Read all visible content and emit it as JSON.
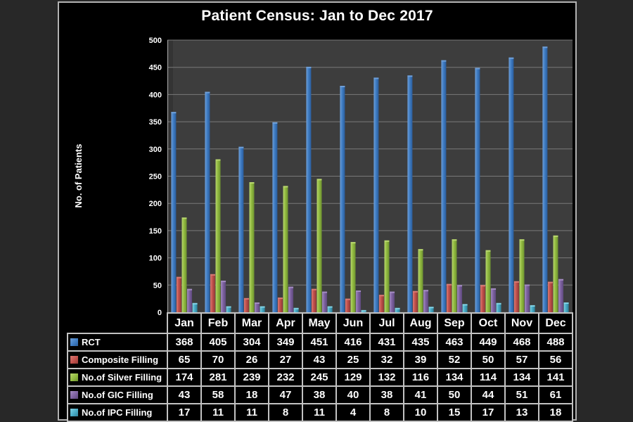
{
  "canvas": {
    "background": "#282828",
    "slide_background": "#000000",
    "slide_border": "#b2b2b2"
  },
  "chart_data": {
    "type": "bar",
    "title": "Patient Census: Jan to Dec 2017",
    "xlabel": "",
    "ylabel": "No. of Patients",
    "ylim": [
      0,
      500
    ],
    "ytick_step": 50,
    "grid": true,
    "legend_position": "table-left",
    "plot_background": "#3d3d3d",
    "gridline_color": "#7a7a7a",
    "axis_line_color": "#a0a0a0",
    "categories": [
      "Jan",
      "Feb",
      "Mar",
      "Apr",
      "May",
      "Jun",
      "Jul",
      "Aug",
      "Sep",
      "Oct",
      "Nov",
      "Dec"
    ],
    "series": [
      {
        "name": "RCT",
        "color": {
          "light": "#6f9fd8",
          "base": "#3f7dc4",
          "dark": "#2a5d9c"
        },
        "values": [
          368,
          405,
          304,
          349,
          451,
          416,
          431,
          435,
          463,
          449,
          468,
          488
        ]
      },
      {
        "name": "Composite Filling",
        "color": {
          "light": "#d97a74",
          "base": "#c2504b",
          "dark": "#8f3a37"
        },
        "values": [
          65,
          70,
          26,
          27,
          43,
          25,
          32,
          39,
          52,
          50,
          57,
          56
        ]
      },
      {
        "name": "No.of Silver Filling",
        "color": {
          "light": "#b9d76e",
          "base": "#92bb40",
          "dark": "#6d9230"
        },
        "values": [
          174,
          281,
          239,
          232,
          245,
          129,
          132,
          116,
          134,
          114,
          134,
          141
        ]
      },
      {
        "name": "No.of GIC Filling",
        "color": {
          "light": "#a48cc2",
          "base": "#7e62a1",
          "dark": "#5d497c"
        },
        "values": [
          43,
          58,
          18,
          47,
          38,
          40,
          38,
          41,
          50,
          44,
          51,
          61
        ]
      },
      {
        "name": "No.of IPC Filling",
        "color": {
          "light": "#82d2e4",
          "base": "#48abc6",
          "dark": "#2f8099"
        },
        "values": [
          17,
          11,
          11,
          8,
          11,
          4,
          8,
          10,
          15,
          17,
          13,
          18
        ]
      }
    ]
  }
}
